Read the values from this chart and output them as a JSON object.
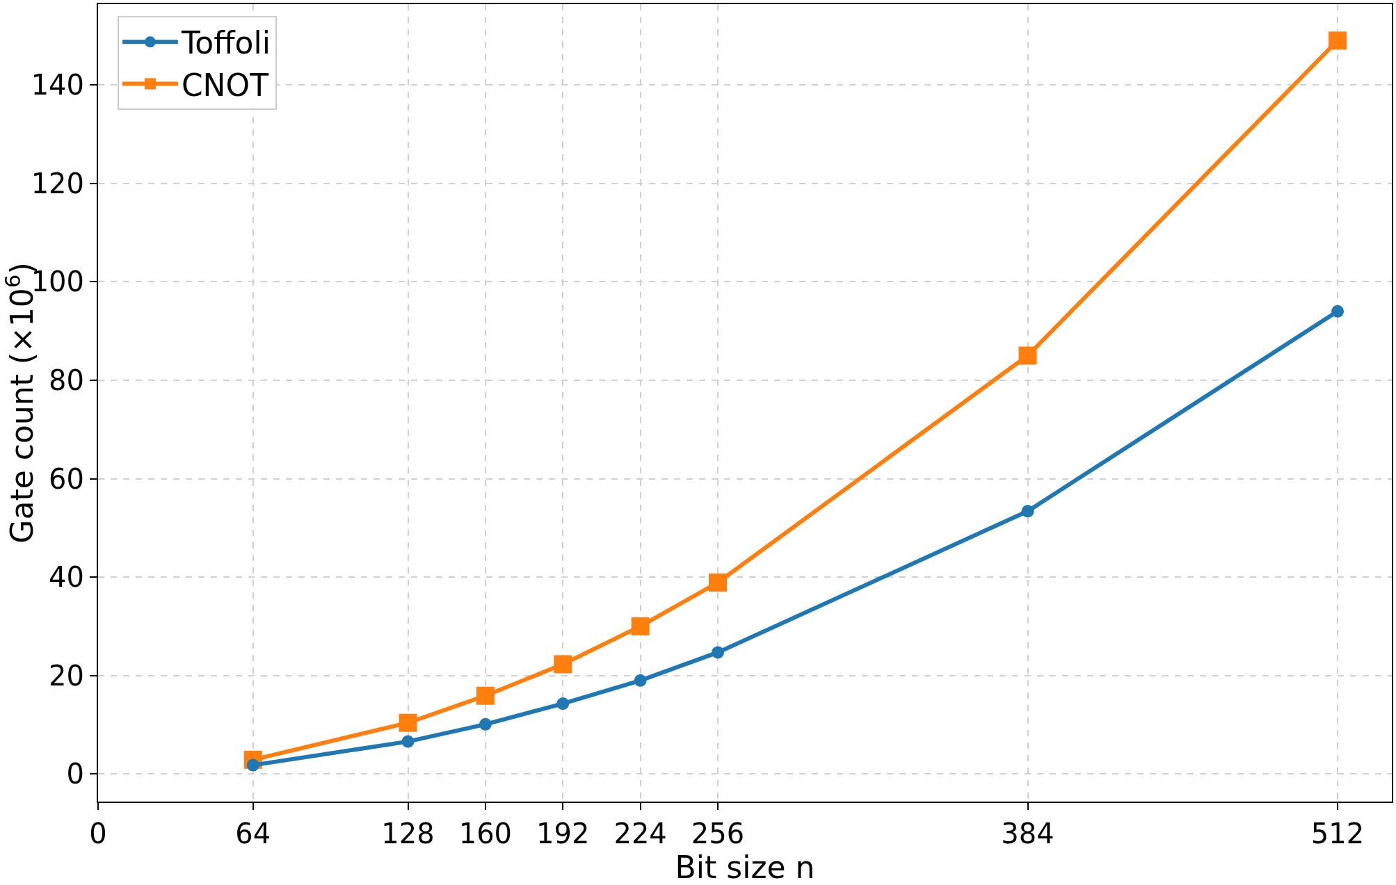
{
  "chart_data": {
    "type": "line",
    "xlabel": "Bit size n",
    "ylabel": "Gate count (×10$^{6}$)",
    "x": [
      64,
      128,
      160,
      192,
      224,
      256,
      384,
      512
    ],
    "series": [
      {
        "name": "Toffoli",
        "color": "#1f77b4",
        "marker": "circle",
        "values": [
          1.8,
          6.6,
          10.1,
          14.3,
          19.0,
          24.7,
          53.4,
          94.0
        ]
      },
      {
        "name": "CNOT",
        "color": "#ff7f0e",
        "marker": "square",
        "values": [
          2.9,
          10.4,
          15.9,
          22.3,
          30.0,
          38.9,
          85.0,
          149.0
        ]
      }
    ],
    "xlim": [
      0,
      534.4
    ],
    "xticks": [
      0,
      64,
      128,
      160,
      192,
      224,
      256,
      384,
      512
    ],
    "ylim": [
      -5.6,
      156.4
    ],
    "yticks": [
      0,
      20,
      40,
      60,
      80,
      100,
      120,
      140
    ],
    "grid": true,
    "legend": "top left",
    "line_style": "solid"
  }
}
